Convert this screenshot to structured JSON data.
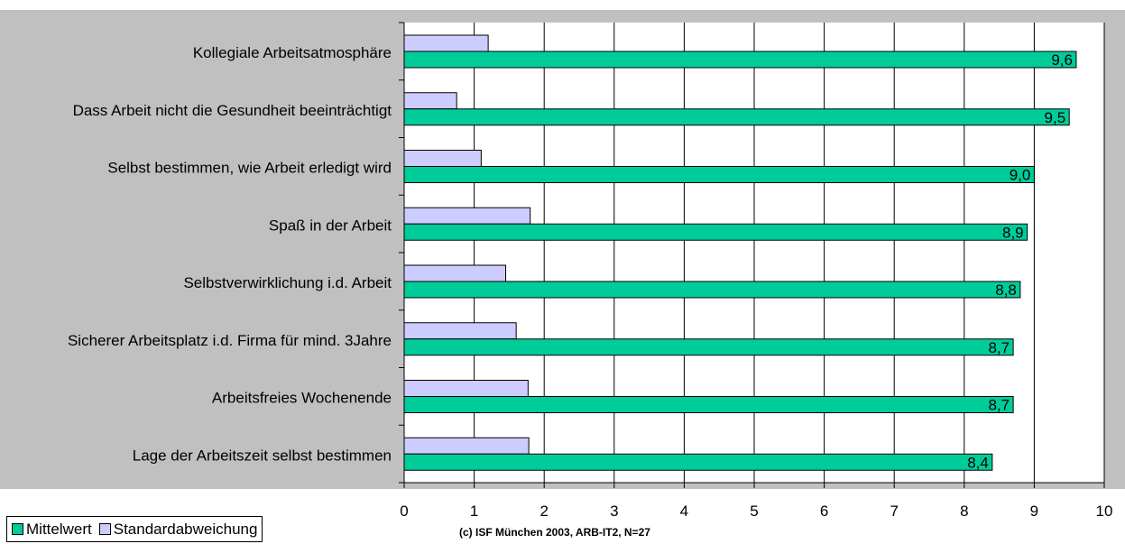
{
  "chart_data": {
    "type": "bar",
    "orientation": "horizontal",
    "categories": [
      "Kollegiale Arbeitsatmosphäre",
      "Dass Arbeit nicht die Gesundheit beeinträchtigt",
      "Selbst bestimmen, wie Arbeit erledigt wird",
      "Spaß in der Arbeit",
      "Selbstverwirklichung i.d. Arbeit",
      "Sicherer Arbeitsplatz i.d. Firma für mind. 3Jahre",
      "Arbeitsfreies Wochenende",
      "Lage der Arbeitszeit selbst bestimmen"
    ],
    "series": [
      {
        "name": "Mittelwert",
        "color": "#00cc99",
        "values": [
          9.6,
          9.5,
          9.0,
          8.9,
          8.8,
          8.7,
          8.7,
          8.4
        ],
        "data_labels": [
          "9,6",
          "9,5",
          "9,0",
          "8,9",
          "8,8",
          "8,7",
          "8,7",
          "8,4"
        ]
      },
      {
        "name": "Standardabweichung",
        "color": "#ccccff",
        "values": [
          1.2,
          0.75,
          1.1,
          1.8,
          1.45,
          1.6,
          1.77,
          1.78
        ]
      }
    ],
    "xlim": [
      0,
      10
    ],
    "xticks": [
      "0",
      "1",
      "2",
      "3",
      "4",
      "5",
      "6",
      "7",
      "8",
      "9",
      "10"
    ],
    "grid": true,
    "legend_position": "bottom-left",
    "footnote": "(c) ISF München 2003, ARB-IT2, N=27"
  }
}
